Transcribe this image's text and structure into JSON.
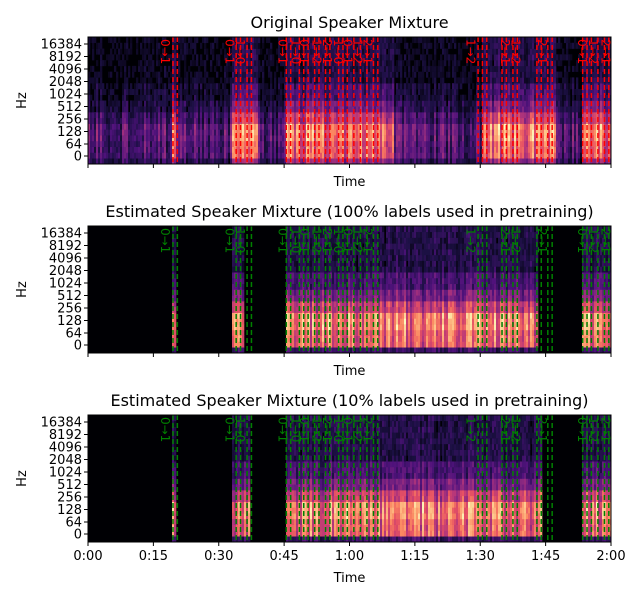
{
  "chart_data": [
    {
      "type": "heatmap",
      "title": "Original Speaker Mixture",
      "xlabel": "Time",
      "ylabel": "Hz",
      "xlim": [
        0,
        120
      ],
      "y_ticks": [
        "0",
        "64",
        "128",
        "256",
        "512",
        "1024",
        "2048",
        "4096",
        "8192",
        "16384"
      ],
      "x_tick_labels_shown": false,
      "annotation_color": "#ff0000",
      "colormap": "magma",
      "active_regions": [
        [
          19,
          20
        ],
        [
          33,
          39
        ],
        [
          45,
          70
        ],
        [
          90,
          107
        ],
        [
          113,
          120
        ]
      ],
      "boundaries": [
        19.5,
        20.5,
        34,
        35,
        36.5,
        37.5,
        45.5,
        46.5,
        48.5,
        49.5,
        50.5,
        52,
        53,
        54.5,
        55.5,
        57.5,
        58.5,
        59.5,
        61,
        62.5,
        64,
        65.5,
        66.5,
        89.5,
        90.5,
        91.5,
        95,
        96,
        97.5,
        98.5,
        103,
        104,
        105.5,
        106.5,
        113.5,
        114.5,
        115.5,
        117,
        118.5,
        119.5
      ],
      "boundary_labels": [
        {
          "t": 17.6,
          "text": "0→1"
        },
        {
          "t": 32.4,
          "text": "0→1"
        },
        {
          "t": 34.8,
          "text": "1→0"
        },
        {
          "t": 44.5,
          "text": "0→1"
        },
        {
          "t": 47.5,
          "text": "1→0"
        },
        {
          "t": 49.5,
          "text": "0→1"
        },
        {
          "t": 52.3,
          "text": "1→2"
        },
        {
          "t": 54.7,
          "text": "2→1"
        },
        {
          "t": 57.2,
          "text": "1→0"
        },
        {
          "t": 59.4,
          "text": "0→1"
        },
        {
          "t": 61.7,
          "text": "1→2"
        },
        {
          "t": 64.0,
          "text": "2→1"
        },
        {
          "t": 87.7,
          "text": "1→2"
        },
        {
          "t": 95.6,
          "text": "2→1"
        },
        {
          "t": 98.0,
          "text": "1→2"
        },
        {
          "t": 104.0,
          "text": "2→1"
        },
        {
          "t": 113.2,
          "text": "0→1"
        },
        {
          "t": 115.8,
          "text": "1→2"
        },
        {
          "t": 118.6,
          "text": "2→1"
        }
      ]
    },
    {
      "type": "heatmap",
      "title": "Estimated Speaker Mixture (100% labels used in pretraining)",
      "xlabel": "Time",
      "ylabel": "Hz",
      "xlim": [
        0,
        120
      ],
      "y_ticks": [
        "0",
        "64",
        "128",
        "256",
        "512",
        "1024",
        "2048",
        "4096",
        "8192",
        "16384"
      ],
      "x_tick_labels_shown": false,
      "annotation_color": "#008000",
      "colormap": "magma",
      "active_regions": [
        [
          19,
          20
        ],
        [
          33,
          35.5
        ],
        [
          45,
          67
        ],
        [
          67,
          103
        ],
        [
          113,
          120
        ]
      ],
      "boundaries": [
        19.5,
        20.5,
        34,
        35,
        36.5,
        37.5,
        45.5,
        46.5,
        48.5,
        49.5,
        50.5,
        52,
        53,
        54.5,
        55.5,
        57.5,
        58.5,
        59.5,
        61,
        62.5,
        64,
        65.5,
        66.5,
        89.5,
        90.5,
        91.5,
        95,
        96,
        97.5,
        98.5,
        103,
        104,
        105.5,
        106.5,
        113.5,
        114.5,
        115.5,
        117,
        118.5,
        119.5
      ],
      "boundary_labels": [
        {
          "t": 17.6,
          "text": "0→1"
        },
        {
          "t": 32.4,
          "text": "0→1"
        },
        {
          "t": 34.8,
          "text": "1→0"
        },
        {
          "t": 44.5,
          "text": "0→1"
        },
        {
          "t": 47.5,
          "text": "1→0"
        },
        {
          "t": 49.5,
          "text": "0→1"
        },
        {
          "t": 52.3,
          "text": "1→2"
        },
        {
          "t": 54.7,
          "text": "2→1"
        },
        {
          "t": 57.2,
          "text": "1→0"
        },
        {
          "t": 59.4,
          "text": "0→1"
        },
        {
          "t": 61.7,
          "text": "1→2"
        },
        {
          "t": 64.0,
          "text": "2→1"
        },
        {
          "t": 87.7,
          "text": "1→2"
        },
        {
          "t": 95.6,
          "text": "2→1"
        },
        {
          "t": 98.0,
          "text": "1→2"
        },
        {
          "t": 104.0,
          "text": "2→1"
        },
        {
          "t": 113.2,
          "text": "0→1"
        },
        {
          "t": 115.8,
          "text": "1→2"
        },
        {
          "t": 118.6,
          "text": "2→1"
        }
      ]
    },
    {
      "type": "heatmap",
      "title": "Estimated Speaker Mixture (10% labels used in pretraining)",
      "xlabel": "Time",
      "ylabel": "Hz",
      "xlim": [
        0,
        120
      ],
      "y_ticks": [
        "0",
        "64",
        "128",
        "256",
        "512",
        "1024",
        "2048",
        "4096",
        "8192",
        "16384"
      ],
      "x_ticks": [
        "0:00",
        "0:15",
        "0:30",
        "0:45",
        "1:00",
        "1:15",
        "1:30",
        "1:45",
        "2:00"
      ],
      "x_tick_labels_shown": true,
      "annotation_color": "#008000",
      "colormap": "magma",
      "active_regions": [
        [
          19,
          20
        ],
        [
          33,
          37
        ],
        [
          45,
          104
        ],
        [
          113,
          120
        ]
      ],
      "boundaries": [
        19.5,
        20.5,
        34,
        35,
        36.5,
        37.5,
        45.5,
        46.5,
        48.5,
        49.5,
        50.5,
        52,
        53,
        54.5,
        55.5,
        57.5,
        58.5,
        59.5,
        61,
        62.5,
        64,
        65.5,
        66.5,
        89.5,
        90.5,
        91.5,
        95,
        96,
        97.5,
        98.5,
        103,
        104,
        105.5,
        106.5,
        113.5,
        114.5,
        115.5,
        117,
        118.5,
        119.5
      ],
      "boundary_labels": [
        {
          "t": 17.6,
          "text": "0→1"
        },
        {
          "t": 32.4,
          "text": "0→1"
        },
        {
          "t": 34.8,
          "text": "1→0"
        },
        {
          "t": 44.5,
          "text": "0→1"
        },
        {
          "t": 47.5,
          "text": "1→0"
        },
        {
          "t": 49.5,
          "text": "0→1"
        },
        {
          "t": 52.3,
          "text": "1→2"
        },
        {
          "t": 54.7,
          "text": "2→1"
        },
        {
          "t": 57.2,
          "text": "1→0"
        },
        {
          "t": 59.4,
          "text": "0→1"
        },
        {
          "t": 61.7,
          "text": "1→2"
        },
        {
          "t": 64.0,
          "text": "2→1"
        },
        {
          "t": 87.7,
          "text": "1→2"
        },
        {
          "t": 95.6,
          "text": "2→1"
        },
        {
          "t": 98.0,
          "text": "1→2"
        },
        {
          "t": 104.0,
          "text": "2→1"
        },
        {
          "t": 113.2,
          "text": "0→1"
        },
        {
          "t": 115.8,
          "text": "1→2"
        },
        {
          "t": 118.6,
          "text": "2→1"
        }
      ]
    }
  ]
}
